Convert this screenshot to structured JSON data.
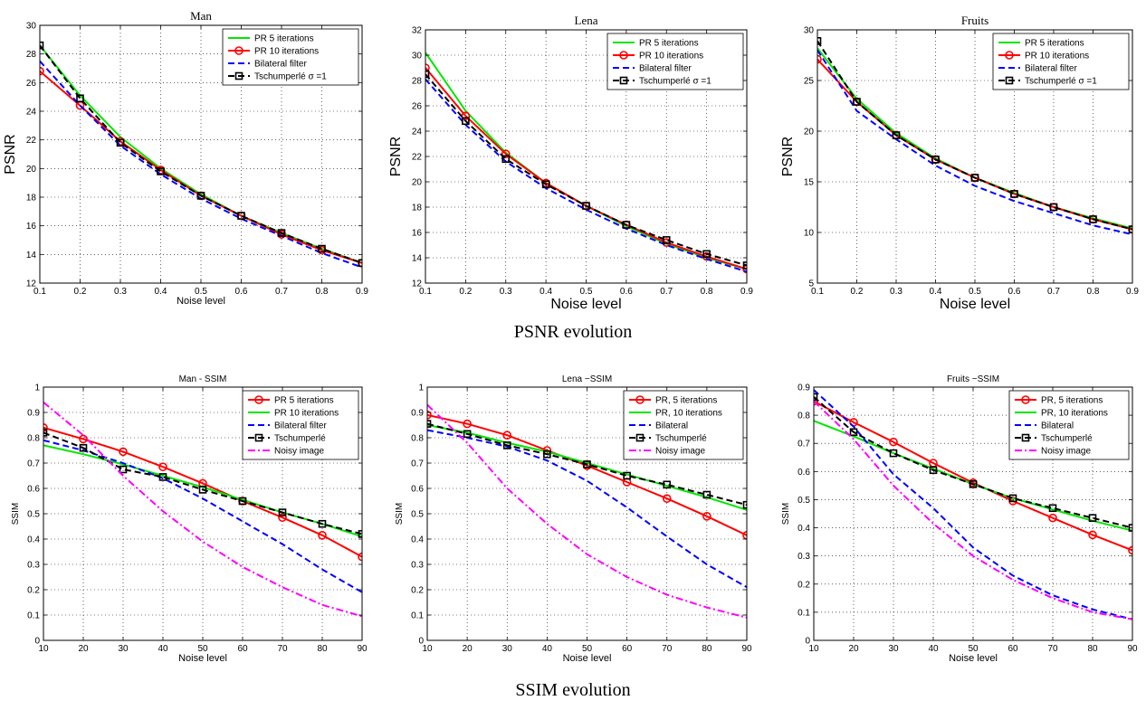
{
  "captions": {
    "psnr": "PSNR evolution",
    "ssim": "SSIM evolution"
  },
  "style": {
    "colors": {
      "red": "#ff0000",
      "green": "#00e600",
      "blue": "#0000ff",
      "black": "#000000",
      "magenta": "#ff00ff"
    }
  },
  "chart_data": [
    {
      "type": "line",
      "title": "Man",
      "xlabel": "Noise level",
      "ylabel": "PSNR",
      "xlim": [
        0.1,
        0.9
      ],
      "ylim": [
        12,
        30
      ],
      "xticks": [
        0.1,
        0.2,
        0.3,
        0.4,
        0.5,
        0.6,
        0.7,
        0.8,
        0.9
      ],
      "yticks": [
        12,
        14,
        16,
        18,
        20,
        22,
        24,
        26,
        28,
        30
      ],
      "grid": true,
      "legend_position": "top-right",
      "x": [
        0.1,
        0.2,
        0.3,
        0.4,
        0.5,
        0.6,
        0.7,
        0.8,
        0.9
      ],
      "series": [
        {
          "name": "PR 5 iterations",
          "color": "green",
          "style": "solid",
          "marker": "none",
          "values": [
            28.6,
            25.1,
            22.2,
            20.0,
            18.2,
            16.7,
            15.5,
            14.4,
            13.4
          ]
        },
        {
          "name": "PR 10 iterations",
          "color": "red",
          "style": "solid",
          "marker": "circle",
          "values": [
            26.8,
            24.4,
            21.9,
            19.9,
            18.1,
            16.7,
            15.4,
            14.3,
            13.4
          ]
        },
        {
          "name": "Bilateral filter",
          "color": "blue",
          "style": "dashed",
          "marker": "none",
          "values": [
            27.5,
            24.4,
            21.6,
            19.6,
            17.9,
            16.5,
            15.3,
            14.1,
            13.1
          ]
        },
        {
          "name": "Tschumperlé σ =1",
          "color": "black",
          "style": "dashed",
          "marker": "square",
          "values": [
            28.6,
            24.9,
            21.8,
            19.8,
            18.1,
            16.7,
            15.5,
            14.4,
            13.4
          ]
        }
      ]
    },
    {
      "type": "line",
      "title": "Lena",
      "xlabel": "Noise level",
      "ylabel": "PSNR",
      "xlim": [
        0.1,
        0.9
      ],
      "ylim": [
        12,
        32
      ],
      "xticks": [
        0.1,
        0.2,
        0.3,
        0.4,
        0.5,
        0.6,
        0.7,
        0.8,
        0.9
      ],
      "yticks": [
        12,
        14,
        16,
        18,
        20,
        22,
        24,
        26,
        28,
        30,
        32
      ],
      "grid": true,
      "legend_position": "top-right",
      "x": [
        0.1,
        0.2,
        0.3,
        0.4,
        0.5,
        0.6,
        0.7,
        0.8,
        0.9
      ],
      "series": [
        {
          "name": "PR 5 iterations",
          "color": "green",
          "style": "solid",
          "marker": "none",
          "values": [
            30.2,
            25.6,
            22.3,
            19.9,
            18.1,
            16.5,
            15.1,
            14.0,
            13.1
          ]
        },
        {
          "name": "PR 10 iterations",
          "color": "red",
          "style": "solid",
          "marker": "circle",
          "values": [
            29.0,
            25.2,
            22.2,
            19.9,
            18.1,
            16.6,
            15.2,
            14.1,
            13.1
          ]
        },
        {
          "name": "Bilateral filter",
          "color": "blue",
          "style": "dashed",
          "marker": "none",
          "values": [
            28.1,
            24.5,
            21.6,
            19.5,
            17.8,
            16.3,
            15.0,
            13.9,
            12.9
          ]
        },
        {
          "name": "Tschumperlé σ =1",
          "color": "black",
          "style": "dashed",
          "marker": "square",
          "values": [
            28.5,
            24.8,
            21.8,
            19.8,
            18.1,
            16.6,
            15.4,
            14.3,
            13.4
          ]
        }
      ]
    },
    {
      "type": "line",
      "title": "Fruits",
      "xlabel": "Noise level",
      "ylabel": "PSNR",
      "xlim": [
        0.1,
        0.9
      ],
      "ylim": [
        5,
        30
      ],
      "xticks": [
        0.1,
        0.2,
        0.3,
        0.4,
        0.5,
        0.6,
        0.7,
        0.8,
        0.9
      ],
      "yticks": [
        5,
        10,
        15,
        20,
        25,
        30
      ],
      "grid": true,
      "legend_position": "top-right",
      "x": [
        0.1,
        0.2,
        0.3,
        0.4,
        0.5,
        0.6,
        0.7,
        0.8,
        0.9
      ],
      "series": [
        {
          "name": "PR 5 iterations",
          "color": "green",
          "style": "solid",
          "marker": "none",
          "values": [
            28.2,
            23.2,
            19.8,
            17.3,
            15.4,
            13.9,
            12.5,
            11.4,
            10.4
          ]
        },
        {
          "name": "PR 10 iterations",
          "color": "red",
          "style": "solid",
          "marker": "circle",
          "values": [
            27.1,
            22.9,
            19.6,
            17.2,
            15.4,
            13.8,
            12.5,
            11.3,
            10.3
          ]
        },
        {
          "name": "Bilateral filter",
          "color": "blue",
          "style": "dashed",
          "marker": "none",
          "values": [
            28.0,
            22.0,
            19.2,
            16.6,
            14.6,
            13.1,
            11.9,
            10.7,
            9.8
          ]
        },
        {
          "name": "Tschumperlé σ =1",
          "color": "black",
          "style": "dashed",
          "marker": "square",
          "values": [
            28.9,
            22.9,
            19.6,
            17.2,
            15.4,
            13.8,
            12.5,
            11.3,
            10.3
          ]
        }
      ]
    },
    {
      "type": "line",
      "title": "Man - SSIM",
      "xlabel": "Noise level",
      "ylabel": "SSIM",
      "xlim": [
        10,
        90
      ],
      "ylim": [
        0,
        1
      ],
      "xticks": [
        10,
        20,
        30,
        40,
        50,
        60,
        70,
        80,
        90
      ],
      "yticks": [
        0,
        0.1,
        0.2,
        0.3,
        0.4,
        0.5,
        0.6,
        0.7,
        0.8,
        0.9,
        1
      ],
      "grid": true,
      "legend_position": "top-right",
      "x": [
        10,
        20,
        30,
        40,
        50,
        60,
        70,
        80,
        90
      ],
      "series": [
        {
          "name": "PR 5 iterations",
          "color": "red",
          "style": "solid",
          "marker": "circle",
          "values": [
            0.84,
            0.795,
            0.745,
            0.685,
            0.62,
            0.55,
            0.485,
            0.415,
            0.33
          ]
        },
        {
          "name": "PR 10 iterations",
          "color": "green",
          "style": "solid",
          "marker": "none",
          "values": [
            0.77,
            0.735,
            0.695,
            0.65,
            0.605,
            0.555,
            0.505,
            0.46,
            0.41
          ]
        },
        {
          "name": "Bilateral filter",
          "color": "blue",
          "style": "dashed",
          "marker": "none",
          "values": [
            0.79,
            0.75,
            0.7,
            0.64,
            0.56,
            0.47,
            0.38,
            0.28,
            0.19
          ]
        },
        {
          "name": "Tschumperlé",
          "color": "black",
          "style": "dashed",
          "marker": "square",
          "values": [
            0.82,
            0.76,
            0.675,
            0.645,
            0.595,
            0.55,
            0.505,
            0.46,
            0.42
          ]
        },
        {
          "name": "Noisy image",
          "color": "magenta",
          "style": "dashdot",
          "marker": "none",
          "values": [
            0.94,
            0.81,
            0.65,
            0.51,
            0.39,
            0.29,
            0.21,
            0.14,
            0.095
          ]
        }
      ]
    },
    {
      "type": "line",
      "title": "Lena −SSIM",
      "xlabel": "Noise level",
      "ylabel": "SSIM",
      "xlim": [
        10,
        90
      ],
      "ylim": [
        0,
        1
      ],
      "xticks": [
        10,
        20,
        30,
        40,
        50,
        60,
        70,
        80,
        90
      ],
      "yticks": [
        0,
        0.1,
        0.2,
        0.3,
        0.4,
        0.5,
        0.6,
        0.7,
        0.8,
        0.9,
        1
      ],
      "grid": true,
      "legend_position": "top-right",
      "x": [
        10,
        20,
        30,
        40,
        50,
        60,
        70,
        80,
        90
      ],
      "series": [
        {
          "name": "PR, 5 iterations",
          "color": "red",
          "style": "solid",
          "marker": "circle",
          "values": [
            0.89,
            0.855,
            0.81,
            0.75,
            0.69,
            0.625,
            0.56,
            0.49,
            0.415
          ]
        },
        {
          "name": "PR, 10 iterations",
          "color": "green",
          "style": "solid",
          "marker": "none",
          "values": [
            0.85,
            0.82,
            0.78,
            0.745,
            0.7,
            0.655,
            0.61,
            0.565,
            0.515
          ]
        },
        {
          "name": "Bilateral",
          "color": "blue",
          "style": "dashed",
          "marker": "none",
          "values": [
            0.83,
            0.8,
            0.765,
            0.71,
            0.63,
            0.525,
            0.41,
            0.3,
            0.21
          ]
        },
        {
          "name": "Tschumperlé",
          "color": "black",
          "style": "dashed",
          "marker": "square",
          "values": [
            0.855,
            0.815,
            0.77,
            0.735,
            0.695,
            0.65,
            0.615,
            0.575,
            0.535
          ]
        },
        {
          "name": "Noisy image",
          "color": "magenta",
          "style": "dashdot",
          "marker": "none",
          "values": [
            0.93,
            0.78,
            0.6,
            0.46,
            0.34,
            0.25,
            0.18,
            0.13,
            0.09
          ]
        }
      ]
    },
    {
      "type": "line",
      "title": "Fruits −SSIM",
      "xlabel": "Noise level",
      "ylabel": "SSIM",
      "xlim": [
        10,
        90
      ],
      "ylim": [
        0,
        0.9
      ],
      "xticks": [
        10,
        20,
        30,
        40,
        50,
        60,
        70,
        80,
        90
      ],
      "yticks": [
        0,
        0.1,
        0.2,
        0.3,
        0.4,
        0.5,
        0.6,
        0.7,
        0.8,
        0.9
      ],
      "grid": true,
      "legend_position": "top-right",
      "x": [
        10,
        20,
        30,
        40,
        50,
        60,
        70,
        80,
        90
      ],
      "series": [
        {
          "name": "PR, 5 iterations",
          "color": "red",
          "style": "solid",
          "marker": "circle",
          "values": [
            0.85,
            0.775,
            0.705,
            0.63,
            0.56,
            0.495,
            0.435,
            0.375,
            0.32
          ]
        },
        {
          "name": "PR, 10 iterations",
          "color": "green",
          "style": "solid",
          "marker": "none",
          "values": [
            0.78,
            0.725,
            0.665,
            0.61,
            0.555,
            0.505,
            0.465,
            0.425,
            0.39
          ]
        },
        {
          "name": "Bilateral",
          "color": "blue",
          "style": "dashed",
          "marker": "none",
          "values": [
            0.89,
            0.76,
            0.59,
            0.47,
            0.33,
            0.23,
            0.16,
            0.11,
            0.075
          ]
        },
        {
          "name": "Tschumperlé",
          "color": "black",
          "style": "dashed",
          "marker": "square",
          "values": [
            0.865,
            0.74,
            0.665,
            0.605,
            0.555,
            0.505,
            0.47,
            0.435,
            0.4
          ]
        },
        {
          "name": "Noisy image",
          "color": "magenta",
          "style": "dashdot",
          "marker": "none",
          "values": [
            0.85,
            0.715,
            0.55,
            0.415,
            0.3,
            0.215,
            0.15,
            0.1,
            0.075
          ]
        }
      ]
    }
  ]
}
